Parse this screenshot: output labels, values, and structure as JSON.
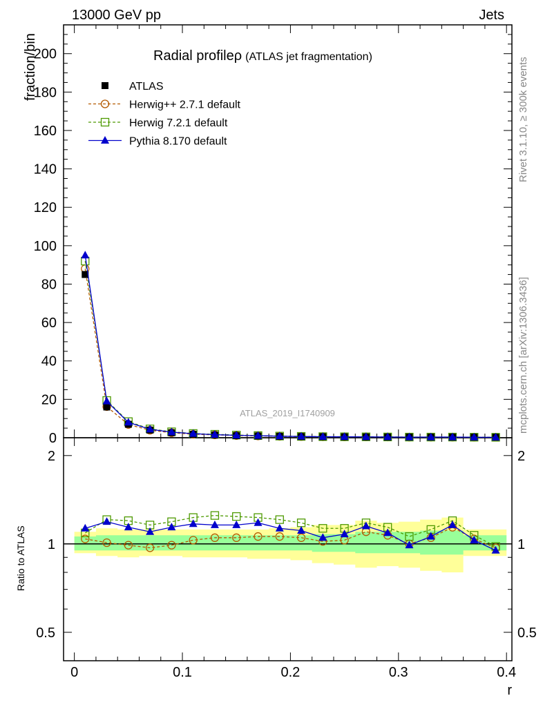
{
  "header": {
    "left": "13000 GeV pp",
    "right": "Jets"
  },
  "side": {
    "rivet": "Rivet 3.1.10, ≥ 300k events",
    "mcplots": "mcplots.cern.ch [arXiv:1306.3436]"
  },
  "watermark": "ATLAS_2019_I1740909",
  "chart_data": [
    {
      "type": "line",
      "title": "Radial profile",
      "title_symbol": "ρ",
      "subtitle": "(ATLAS jet fragmentation)",
      "xlabel": "r",
      "ylabel": "fraction/bin",
      "xlim": [
        -0.01,
        0.405
      ],
      "ylim": [
        0,
        215
      ],
      "yticks": [
        0,
        20,
        40,
        60,
        80,
        100,
        120,
        140,
        160,
        180,
        200
      ],
      "x": [
        0.01,
        0.03,
        0.05,
        0.07,
        0.09,
        0.11,
        0.13,
        0.15,
        0.17,
        0.19,
        0.21,
        0.23,
        0.25,
        0.27,
        0.29,
        0.31,
        0.33,
        0.35,
        0.37,
        0.39
      ],
      "series": [
        {
          "name": "ATLAS",
          "style": "data",
          "color": "#000000",
          "marker": "square-filled",
          "values": [
            85.0,
            16.0,
            7.0,
            4.0,
            2.6,
            1.8,
            1.4,
            1.1,
            0.9,
            0.7,
            0.6,
            0.5,
            0.45,
            0.4,
            0.35,
            0.32,
            0.3,
            0.28,
            0.26,
            0.24
          ]
        },
        {
          "name": "Herwig++ 2.7.1 default",
          "style": "dashed",
          "color": "#b35900",
          "marker": "circle-open",
          "values": [
            88.0,
            16.2,
            6.9,
            3.9,
            2.6,
            1.8,
            1.5,
            1.15,
            0.95,
            0.74,
            0.63,
            0.51,
            0.46,
            0.44,
            0.38,
            0.32,
            0.31,
            0.32,
            0.27,
            0.23
          ]
        },
        {
          "name": "Herwig 7.2.1 default",
          "style": "dashed",
          "color": "#4d9900",
          "marker": "square-open",
          "values": [
            92.0,
            19.4,
            8.4,
            4.6,
            3.1,
            2.2,
            1.8,
            1.4,
            1.12,
            0.87,
            0.71,
            0.57,
            0.5,
            0.47,
            0.4,
            0.34,
            0.34,
            0.34,
            0.28,
            0.24
          ]
        },
        {
          "name": "Pythia 8.170 default",
          "style": "solid",
          "color": "#0000cc",
          "marker": "triangle-filled",
          "values": [
            95.0,
            19.0,
            8.0,
            4.4,
            2.9,
            2.1,
            1.6,
            1.27,
            1.07,
            0.79,
            0.66,
            0.52,
            0.48,
            0.46,
            0.39,
            0.32,
            0.33,
            0.33,
            0.27,
            0.23
          ]
        }
      ]
    },
    {
      "type": "line",
      "ylabel": "Ratio to ATLAS",
      "xlabel": "r",
      "xlim": [
        -0.01,
        0.405
      ],
      "ylim": [
        0.4,
        2.3
      ],
      "yscale": "log",
      "yticks": [
        0.5,
        1,
        2
      ],
      "xticks": [
        0,
        0.1,
        0.2,
        0.3,
        0.4
      ],
      "x": [
        0.01,
        0.03,
        0.05,
        0.07,
        0.09,
        0.11,
        0.13,
        0.15,
        0.17,
        0.19,
        0.21,
        0.23,
        0.25,
        0.27,
        0.29,
        0.31,
        0.33,
        0.35,
        0.37,
        0.39
      ],
      "band_inner": {
        "color": "#99ff99",
        "lo": [
          0.95,
          0.95,
          0.95,
          0.95,
          0.95,
          0.95,
          0.95,
          0.95,
          0.95,
          0.95,
          0.95,
          0.94,
          0.94,
          0.93,
          0.93,
          0.93,
          0.92,
          0.92,
          0.95,
          0.95
        ],
        "hi": [
          1.06,
          1.07,
          1.07,
          1.07,
          1.07,
          1.07,
          1.07,
          1.07,
          1.07,
          1.07,
          1.07,
          1.08,
          1.08,
          1.1,
          1.1,
          1.1,
          1.11,
          1.11,
          1.07,
          1.07
        ]
      },
      "band_outer": {
        "color": "#ffff99",
        "lo": [
          0.93,
          0.91,
          0.9,
          0.91,
          0.91,
          0.9,
          0.9,
          0.9,
          0.89,
          0.89,
          0.88,
          0.86,
          0.85,
          0.83,
          0.84,
          0.83,
          0.81,
          0.8,
          0.91,
          0.91
        ],
        "hi": [
          1.1,
          1.13,
          1.12,
          1.12,
          1.12,
          1.12,
          1.12,
          1.12,
          1.12,
          1.13,
          1.14,
          1.16,
          1.16,
          1.2,
          1.18,
          1.19,
          1.21,
          1.23,
          1.12,
          1.12
        ]
      },
      "series": [
        {
          "name": "Herwig++ 2.7.1 default",
          "style": "dashed",
          "color": "#b35900",
          "marker": "circle-open",
          "values": [
            1.04,
            1.01,
            0.99,
            0.97,
            0.99,
            1.03,
            1.05,
            1.05,
            1.06,
            1.06,
            1.05,
            1.02,
            1.03,
            1.1,
            1.07,
            1.0,
            1.05,
            1.14,
            1.04,
            0.97
          ]
        },
        {
          "name": "Herwig 7.2.1 default",
          "style": "dashed",
          "color": "#4d9900",
          "marker": "square-open",
          "values": [
            1.09,
            1.21,
            1.2,
            1.16,
            1.19,
            1.23,
            1.25,
            1.24,
            1.23,
            1.21,
            1.18,
            1.13,
            1.13,
            1.18,
            1.14,
            1.06,
            1.12,
            1.2,
            1.07,
            0.98
          ]
        },
        {
          "name": "Pythia 8.170 default",
          "style": "solid",
          "color": "#0000cc",
          "marker": "triangle-filled",
          "values": [
            1.13,
            1.19,
            1.14,
            1.1,
            1.14,
            1.17,
            1.16,
            1.16,
            1.18,
            1.13,
            1.11,
            1.05,
            1.08,
            1.15,
            1.09,
            0.99,
            1.06,
            1.16,
            1.03,
            0.95
          ]
        }
      ]
    }
  ]
}
